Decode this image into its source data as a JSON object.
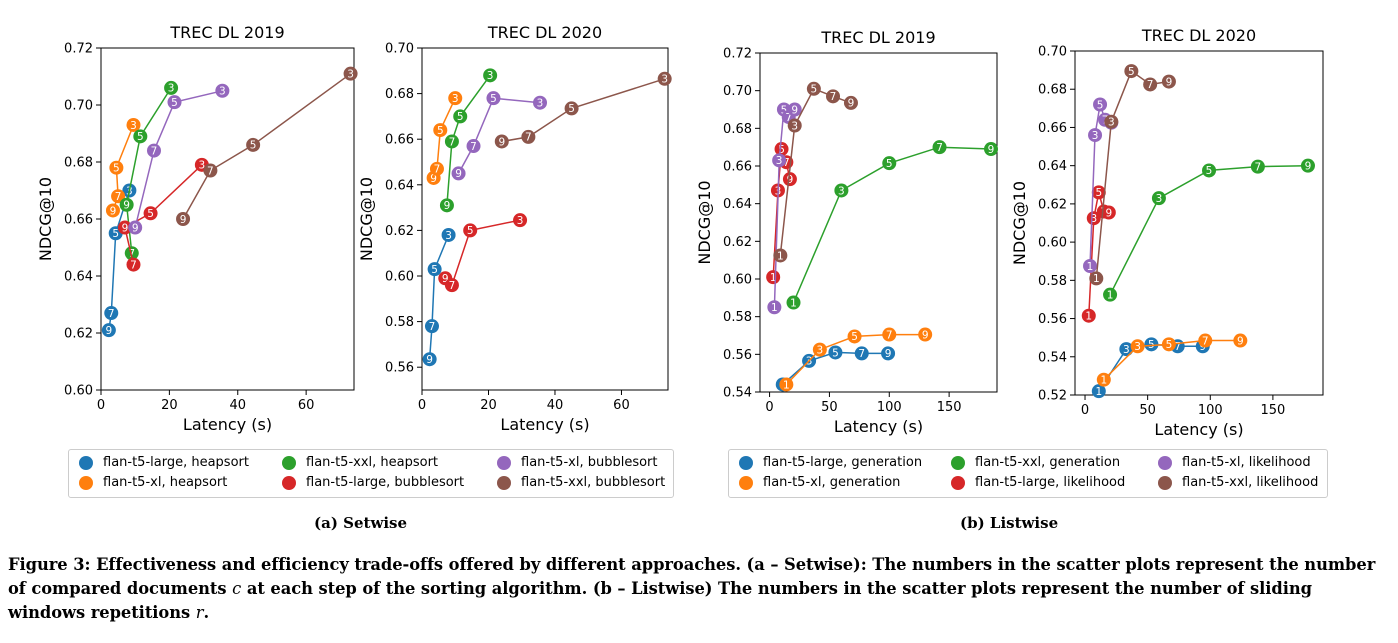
{
  "colors": {
    "flan-t5-large": "#1f77b4",
    "flan-t5-xl": "#ff7f0e",
    "flan-t5-xxl": "#2ca02c",
    "flan-t5-large-bubble": "#d62728",
    "flan-t5-xl-bubble": "#9467bd",
    "flan-t5-xxl-bubble": "#8c564b"
  },
  "chart_data": [
    {
      "id": "setwise-2019",
      "type": "scatter",
      "title": "TREC DL 2019",
      "xlabel": "Latency (s)",
      "ylabel": "NDCG@10",
      "xlim": [
        0,
        74
      ],
      "ylim": [
        0.6,
        0.72
      ],
      "xticks": [
        0,
        20,
        40,
        60
      ],
      "yticks": [
        0.6,
        0.62,
        0.64,
        0.66,
        0.68,
        0.7,
        0.72
      ],
      "ytick_labels": [
        "0.60",
        "0.62",
        "0.64",
        "0.66",
        "0.68",
        "0.70",
        "0.72"
      ],
      "series": [
        {
          "name": "flan-t5-large, heapsort",
          "color": "#1f77b4",
          "points": [
            {
              "x": 2.3,
              "y": 0.621,
              "label": "9"
            },
            {
              "x": 3.0,
              "y": 0.627,
              "label": "7"
            },
            {
              "x": 4.3,
              "y": 0.655,
              "label": "5"
            },
            {
              "x": 8.3,
              "y": 0.67,
              "label": "3"
            }
          ]
        },
        {
          "name": "flan-t5-xl, heapsort",
          "color": "#ff7f0e",
          "points": [
            {
              "x": 3.5,
              "y": 0.663,
              "label": "9"
            },
            {
              "x": 5.0,
              "y": 0.668,
              "label": "7"
            },
            {
              "x": 4.5,
              "y": 0.678,
              "label": "5"
            },
            {
              "x": 9.5,
              "y": 0.693,
              "label": "3"
            }
          ]
        },
        {
          "name": "flan-t5-xxl, heapsort",
          "color": "#2ca02c",
          "points": [
            {
              "x": 9.0,
              "y": 0.648,
              "label": "7"
            },
            {
              "x": 7.5,
              "y": 0.665,
              "label": "9"
            },
            {
              "x": 11.5,
              "y": 0.689,
              "label": "5"
            },
            {
              "x": 20.5,
              "y": 0.706,
              "label": "3"
            }
          ]
        },
        {
          "name": "flan-t5-large, bubblesort",
          "color": "#d62728",
          "points": [
            {
              "x": 9.5,
              "y": 0.644,
              "label": "7"
            },
            {
              "x": 7.0,
              "y": 0.657,
              "label": "9"
            },
            {
              "x": 14.5,
              "y": 0.662,
              "label": "5"
            },
            {
              "x": 29.5,
              "y": 0.679,
              "label": "3"
            }
          ]
        },
        {
          "name": "flan-t5-xl, bubblesort",
          "color": "#9467bd",
          "points": [
            {
              "x": 10.0,
              "y": 0.657,
              "label": "9"
            },
            {
              "x": 15.5,
              "y": 0.684,
              "label": "7"
            },
            {
              "x": 21.5,
              "y": 0.701,
              "label": "5"
            },
            {
              "x": 35.5,
              "y": 0.705,
              "label": "3"
            }
          ]
        },
        {
          "name": "flan-t5-xxl, bubblesort",
          "color": "#8c564b",
          "points": [
            {
              "x": 24.0,
              "y": 0.66,
              "label": "9"
            },
            {
              "x": 32.0,
              "y": 0.677,
              "label": "7"
            },
            {
              "x": 44.5,
              "y": 0.686,
              "label": "5"
            },
            {
              "x": 73.0,
              "y": 0.711,
              "label": "3"
            }
          ]
        }
      ]
    },
    {
      "id": "setwise-2020",
      "type": "scatter",
      "title": "TREC DL 2020",
      "xlabel": "Latency (s)",
      "ylabel": "NDCG@10",
      "xlim": [
        0,
        74
      ],
      "ylim": [
        0.55,
        0.7
      ],
      "xticks": [
        0,
        20,
        40,
        60
      ],
      "yticks": [
        0.56,
        0.58,
        0.6,
        0.62,
        0.64,
        0.66,
        0.68,
        0.7
      ],
      "ytick_labels": [
        "0.56",
        "0.58",
        "0.60",
        "0.62",
        "0.64",
        "0.66",
        "0.68",
        "0.70"
      ],
      "series": [
        {
          "name": "flan-t5-large, heapsort",
          "color": "#1f77b4",
          "points": [
            {
              "x": 2.3,
              "y": 0.5635,
              "label": "9"
            },
            {
              "x": 3.0,
              "y": 0.578,
              "label": "7"
            },
            {
              "x": 3.8,
              "y": 0.603,
              "label": "5"
            },
            {
              "x": 8.0,
              "y": 0.618,
              "label": "3"
            }
          ]
        },
        {
          "name": "flan-t5-xl, heapsort",
          "color": "#ff7f0e",
          "points": [
            {
              "x": 3.5,
              "y": 0.643,
              "label": "9"
            },
            {
              "x": 4.5,
              "y": 0.647,
              "label": "7"
            },
            {
              "x": 5.5,
              "y": 0.664,
              "label": "5"
            },
            {
              "x": 10.0,
              "y": 0.678,
              "label": "3"
            }
          ]
        },
        {
          "name": "flan-t5-xxl, heapsort",
          "color": "#2ca02c",
          "points": [
            {
              "x": 7.5,
              "y": 0.631,
              "label": "9"
            },
            {
              "x": 9.0,
              "y": 0.659,
              "label": "7"
            },
            {
              "x": 11.5,
              "y": 0.67,
              "label": "5"
            },
            {
              "x": 20.5,
              "y": 0.688,
              "label": "3"
            }
          ]
        },
        {
          "name": "flan-t5-large, bubblesort",
          "color": "#d62728",
          "points": [
            {
              "x": 7.0,
              "y": 0.599,
              "label": "9"
            },
            {
              "x": 9.0,
              "y": 0.596,
              "label": "7"
            },
            {
              "x": 14.5,
              "y": 0.62,
              "label": "5"
            },
            {
              "x": 29.5,
              "y": 0.6245,
              "label": "3"
            }
          ]
        },
        {
          "name": "flan-t5-xl, bubblesort",
          "color": "#9467bd",
          "points": [
            {
              "x": 11.0,
              "y": 0.645,
              "label": "9"
            },
            {
              "x": 15.5,
              "y": 0.657,
              "label": "7"
            },
            {
              "x": 21.5,
              "y": 0.678,
              "label": "5"
            },
            {
              "x": 35.5,
              "y": 0.676,
              "label": "3"
            }
          ]
        },
        {
          "name": "flan-t5-xxl, bubblesort",
          "color": "#8c564b",
          "points": [
            {
              "x": 24.0,
              "y": 0.659,
              "label": "9"
            },
            {
              "x": 32.0,
              "y": 0.661,
              "label": "7"
            },
            {
              "x": 45.0,
              "y": 0.6735,
              "label": "5"
            },
            {
              "x": 73.0,
              "y": 0.6865,
              "label": "3"
            }
          ]
        }
      ]
    },
    {
      "id": "listwise-2019",
      "type": "scatter",
      "title": "TREC DL 2019",
      "xlabel": "Latency (s)",
      "ylabel": "NDCG@10",
      "xlim": [
        -8,
        190
      ],
      "ylim": [
        0.54,
        0.72
      ],
      "xticks": [
        0,
        50,
        100,
        150
      ],
      "yticks": [
        0.54,
        0.56,
        0.58,
        0.6,
        0.62,
        0.64,
        0.66,
        0.68,
        0.7,
        0.72
      ],
      "ytick_labels": [
        "0.54",
        "0.56",
        "0.58",
        "0.60",
        "0.62",
        "0.64",
        "0.66",
        "0.68",
        "0.70",
        "0.72"
      ],
      "series": [
        {
          "name": "flan-t5-large, generation",
          "color": "#1f77b4",
          "points": [
            {
              "x": 11,
              "y": 0.544,
              "label": "1"
            },
            {
              "x": 33,
              "y": 0.5565,
              "label": "3"
            },
            {
              "x": 55,
              "y": 0.561,
              "label": "5"
            },
            {
              "x": 77,
              "y": 0.5605,
              "label": "7"
            },
            {
              "x": 99,
              "y": 0.5605,
              "label": "9"
            }
          ]
        },
        {
          "name": "flan-t5-xl, generation",
          "color": "#ff7f0e",
          "points": [
            {
              "x": 14,
              "y": 0.544,
              "label": "1"
            },
            {
              "x": 42,
              "y": 0.5625,
              "label": "3"
            },
            {
              "x": 71,
              "y": 0.5695,
              "label": "5"
            },
            {
              "x": 100,
              "y": 0.5705,
              "label": "7"
            },
            {
              "x": 130,
              "y": 0.5705,
              "label": "9"
            }
          ]
        },
        {
          "name": "flan-t5-xxl, generation",
          "color": "#2ca02c",
          "points": [
            {
              "x": 20,
              "y": 0.5875,
              "label": "1"
            },
            {
              "x": 60,
              "y": 0.647,
              "label": "3"
            },
            {
              "x": 100,
              "y": 0.6615,
              "label": "5"
            },
            {
              "x": 142,
              "y": 0.67,
              "label": "7"
            },
            {
              "x": 185,
              "y": 0.669,
              "label": "9"
            }
          ]
        },
        {
          "name": "flan-t5-large, likelihood",
          "color": "#d62728",
          "points": [
            {
              "x": 3,
              "y": 0.601,
              "label": "1"
            },
            {
              "x": 7,
              "y": 0.647,
              "label": "3"
            },
            {
              "x": 10,
              "y": 0.669,
              "label": "5"
            },
            {
              "x": 14,
              "y": 0.662,
              "label": "7"
            },
            {
              "x": 17,
              "y": 0.653,
              "label": "9"
            }
          ]
        },
        {
          "name": "flan-t5-xl, likelihood",
          "color": "#9467bd",
          "points": [
            {
              "x": 4,
              "y": 0.585,
              "label": "1"
            },
            {
              "x": 8,
              "y": 0.663,
              "label": "3"
            },
            {
              "x": 12,
              "y": 0.69,
              "label": "5"
            },
            {
              "x": 16,
              "y": 0.686,
              "label": "7"
            },
            {
              "x": 21,
              "y": 0.69,
              "label": "9"
            }
          ]
        },
        {
          "name": "flan-t5-xxl, likelihood",
          "color": "#8c564b",
          "points": [
            {
              "x": 9,
              "y": 0.6125,
              "label": "1"
            },
            {
              "x": 21,
              "y": 0.6815,
              "label": "3"
            },
            {
              "x": 37,
              "y": 0.701,
              "label": "5"
            },
            {
              "x": 53,
              "y": 0.697,
              "label": "7"
            },
            {
              "x": 68,
              "y": 0.6935,
              "label": "9"
            }
          ]
        }
      ]
    },
    {
      "id": "listwise-2020",
      "type": "scatter",
      "title": "TREC DL 2020",
      "xlabel": "Latency (s)",
      "ylabel": "NDCG@10",
      "xlim": [
        -8,
        190
      ],
      "ylim": [
        0.52,
        0.7
      ],
      "xticks": [
        0,
        50,
        100,
        150
      ],
      "yticks": [
        0.52,
        0.54,
        0.56,
        0.58,
        0.6,
        0.62,
        0.64,
        0.66,
        0.68,
        0.7
      ],
      "ytick_labels": [
        "0.52",
        "0.54",
        "0.56",
        "0.58",
        "0.60",
        "0.62",
        "0.64",
        "0.66",
        "0.68",
        "0.70"
      ],
      "series": [
        {
          "name": "flan-t5-large, generation",
          "color": "#1f77b4",
          "points": [
            {
              "x": 11,
              "y": 0.522,
              "label": "1"
            },
            {
              "x": 33,
              "y": 0.544,
              "label": "3"
            },
            {
              "x": 53,
              "y": 0.5465,
              "label": "5"
            },
            {
              "x": 74,
              "y": 0.5455,
              "label": "7"
            },
            {
              "x": 94,
              "y": 0.5455,
              "label": "9"
            }
          ]
        },
        {
          "name": "flan-t5-xl, generation",
          "color": "#ff7f0e",
          "points": [
            {
              "x": 15,
              "y": 0.528,
              "label": "1"
            },
            {
              "x": 42,
              "y": 0.5455,
              "label": "3"
            },
            {
              "x": 67,
              "y": 0.5465,
              "label": "5"
            },
            {
              "x": 96,
              "y": 0.5485,
              "label": "7"
            },
            {
              "x": 124,
              "y": 0.5485,
              "label": "9"
            }
          ]
        },
        {
          "name": "flan-t5-xxl, generation",
          "color": "#2ca02c",
          "points": [
            {
              "x": 20,
              "y": 0.5725,
              "label": "1"
            },
            {
              "x": 59,
              "y": 0.623,
              "label": "3"
            },
            {
              "x": 99,
              "y": 0.6375,
              "label": "5"
            },
            {
              "x": 138,
              "y": 0.6395,
              "label": "7"
            },
            {
              "x": 178,
              "y": 0.64,
              "label": "9"
            }
          ]
        },
        {
          "name": "flan-t5-large, likelihood",
          "color": "#d62728",
          "points": [
            {
              "x": 3,
              "y": 0.5615,
              "label": "1"
            },
            {
              "x": 7,
              "y": 0.6125,
              "label": "3"
            },
            {
              "x": 11,
              "y": 0.626,
              "label": "5"
            },
            {
              "x": 15,
              "y": 0.616,
              "label": "7"
            },
            {
              "x": 19,
              "y": 0.6155,
              "label": "9"
            }
          ]
        },
        {
          "name": "flan-t5-xl, likelihood",
          "color": "#9467bd",
          "points": [
            {
              "x": 4,
              "y": 0.5875,
              "label": "1"
            },
            {
              "x": 8,
              "y": 0.656,
              "label": "3"
            },
            {
              "x": 12,
              "y": 0.672,
              "label": "5"
            },
            {
              "x": 16,
              "y": 0.664,
              "label": "7"
            },
            {
              "x": 21,
              "y": 0.6625,
              "label": "9"
            }
          ]
        },
        {
          "name": "flan-t5-xxl, likelihood",
          "color": "#8c564b",
          "points": [
            {
              "x": 9,
              "y": 0.581,
              "label": "1"
            },
            {
              "x": 21,
              "y": 0.663,
              "label": "3"
            },
            {
              "x": 37,
              "y": 0.6895,
              "label": "5"
            },
            {
              "x": 52,
              "y": 0.6825,
              "label": "7"
            },
            {
              "x": 67,
              "y": 0.684,
              "label": "9"
            }
          ]
        }
      ]
    }
  ],
  "legends": {
    "setwise": [
      "flan-t5-large, heapsort",
      "flan-t5-xl, heapsort",
      "flan-t5-xxl, heapsort",
      "flan-t5-large, bubblesort",
      "flan-t5-xl, bubblesort",
      "flan-t5-xxl, bubblesort"
    ],
    "listwise": [
      "flan-t5-large, generation",
      "flan-t5-xl, generation",
      "flan-t5-xxl, generation",
      "flan-t5-large, likelihood",
      "flan-t5-xl, likelihood",
      "flan-t5-xxl, likelihood"
    ]
  },
  "legend_colors": [
    "#1f77b4",
    "#ff7f0e",
    "#2ca02c",
    "#d62728",
    "#9467bd",
    "#8c564b"
  ],
  "sublabels": {
    "a": "(a) Setwise",
    "b": "(b) Listwise"
  },
  "caption": {
    "part1": "Figure 3: Effectiveness and efficiency trade-offs offered by different approaches. (a – Setwise): The numbers in the scatter plots represent the number of compared documents ",
    "var_c": "c",
    "part2": " at each step of the sorting algorithm. (b – Listwise) The numbers in the scatter plots represent the number of sliding windows repetitions ",
    "var_r": "r",
    "part3": "."
  }
}
